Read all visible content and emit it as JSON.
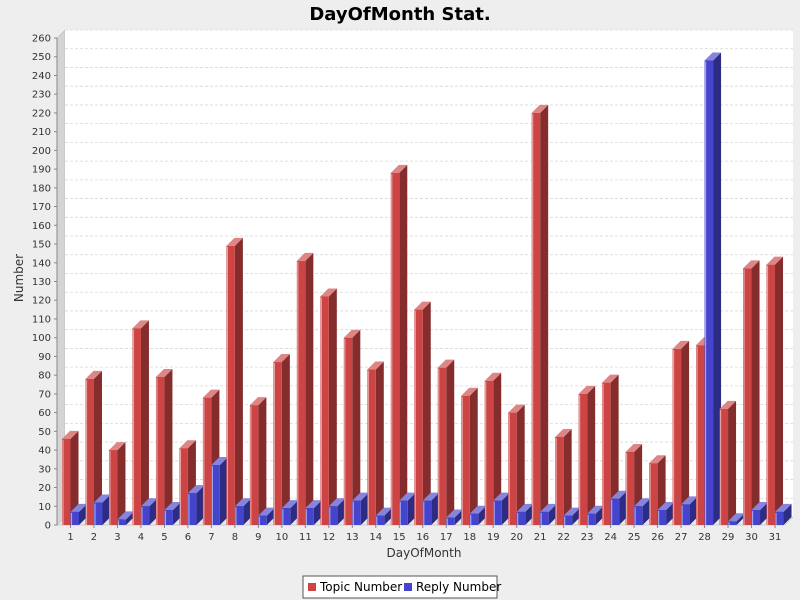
{
  "chart_data": {
    "type": "bar",
    "title": "DayOfMonth Stat.",
    "xlabel": "DayOfMonth",
    "ylabel": "Number",
    "ylim": [
      0,
      260
    ],
    "ytick_step": 10,
    "grid": true,
    "legend_position": "bottom",
    "categories": [
      "1",
      "2",
      "3",
      "4",
      "5",
      "6",
      "7",
      "8",
      "9",
      "10",
      "11",
      "12",
      "13",
      "14",
      "15",
      "16",
      "17",
      "18",
      "19",
      "20",
      "21",
      "22",
      "23",
      "24",
      "25",
      "26",
      "27",
      "28",
      "29",
      "30",
      "31"
    ],
    "series": [
      {
        "name": "Topic Number",
        "color": "#cc4444",
        "values": [
          46,
          78,
          40,
          105,
          79,
          41,
          68,
          149,
          64,
          87,
          141,
          122,
          100,
          83,
          188,
          115,
          84,
          69,
          77,
          60,
          220,
          47,
          70,
          76,
          39,
          33,
          94,
          96,
          62,
          137,
          139
        ]
      },
      {
        "name": "Reply Number",
        "color": "#4444cc",
        "values": [
          7,
          12,
          3,
          10,
          8,
          17,
          32,
          10,
          5,
          9,
          9,
          10,
          13,
          5,
          13,
          13,
          4,
          6,
          13,
          7,
          7,
          5,
          6,
          14,
          10,
          8,
          11,
          248,
          2,
          8,
          7
        ]
      }
    ]
  }
}
